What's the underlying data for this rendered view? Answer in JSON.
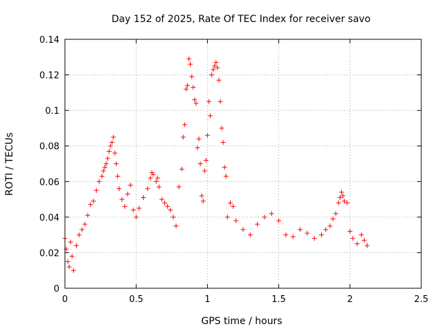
{
  "chart_data": {
    "type": "scatter",
    "title": "Day 152 of 2025, Rate Of TEC Index for receiver savo",
    "xlabel": "GPS time / hours",
    "ylabel": "ROTI / TECUs",
    "xlim": [
      0,
      2.5
    ],
    "ylim": [
      0,
      0.14
    ],
    "xticks": [
      "0",
      "0.5",
      "1",
      "1.5",
      "2",
      "2.5"
    ],
    "yticks": [
      "0",
      "0.02",
      "0.04",
      "0.06",
      "0.08",
      "0.1",
      "0.12",
      "0.14"
    ],
    "grid": true,
    "marker": "+",
    "marker_color": "#ff0000",
    "series": [
      {
        "points": [
          [
            0.0,
            0.028
          ],
          [
            0.01,
            0.022
          ],
          [
            0.02,
            0.015
          ],
          [
            0.03,
            0.012
          ],
          [
            0.04,
            0.026
          ],
          [
            0.05,
            0.018
          ],
          [
            0.06,
            0.01
          ],
          [
            0.08,
            0.024
          ],
          [
            0.1,
            0.03
          ],
          [
            0.12,
            0.033
          ],
          [
            0.14,
            0.036
          ],
          [
            0.16,
            0.041
          ],
          [
            0.18,
            0.047
          ],
          [
            0.2,
            0.049
          ],
          [
            0.22,
            0.055
          ],
          [
            0.24,
            0.06
          ],
          [
            0.26,
            0.063
          ],
          [
            0.27,
            0.066
          ],
          [
            0.28,
            0.068
          ],
          [
            0.29,
            0.07
          ],
          [
            0.3,
            0.073
          ],
          [
            0.31,
            0.077
          ],
          [
            0.32,
            0.08
          ],
          [
            0.33,
            0.082
          ],
          [
            0.34,
            0.085
          ],
          [
            0.35,
            0.076
          ],
          [
            0.36,
            0.07
          ],
          [
            0.37,
            0.063
          ],
          [
            0.38,
            0.056
          ],
          [
            0.4,
            0.05
          ],
          [
            0.42,
            0.046
          ],
          [
            0.44,
            0.053
          ],
          [
            0.46,
            0.058
          ],
          [
            0.48,
            0.044
          ],
          [
            0.5,
            0.04
          ],
          [
            0.52,
            0.045
          ],
          [
            0.55,
            0.051
          ],
          [
            0.58,
            0.056
          ],
          [
            0.6,
            0.062
          ],
          [
            0.61,
            0.065
          ],
          [
            0.62,
            0.064
          ],
          [
            0.64,
            0.06
          ],
          [
            0.65,
            0.062
          ],
          [
            0.66,
            0.057
          ],
          [
            0.68,
            0.05
          ],
          [
            0.7,
            0.048
          ],
          [
            0.72,
            0.046
          ],
          [
            0.74,
            0.044
          ],
          [
            0.76,
            0.04
          ],
          [
            0.78,
            0.035
          ],
          [
            0.8,
            0.057
          ],
          [
            0.82,
            0.067
          ],
          [
            0.83,
            0.085
          ],
          [
            0.84,
            0.092
          ],
          [
            0.85,
            0.112
          ],
          [
            0.86,
            0.114
          ],
          [
            0.87,
            0.129
          ],
          [
            0.88,
            0.126
          ],
          [
            0.89,
            0.119
          ],
          [
            0.9,
            0.113
          ],
          [
            0.91,
            0.106
          ],
          [
            0.92,
            0.104
          ],
          [
            0.93,
            0.079
          ],
          [
            0.94,
            0.084
          ],
          [
            0.95,
            0.07
          ],
          [
            0.96,
            0.052
          ],
          [
            0.97,
            0.049
          ],
          [
            0.98,
            0.066
          ],
          [
            0.99,
            0.072
          ],
          [
            1.0,
            0.086
          ],
          [
            1.01,
            0.105
          ],
          [
            1.02,
            0.097
          ],
          [
            1.03,
            0.12
          ],
          [
            1.04,
            0.123
          ],
          [
            1.05,
            0.125
          ],
          [
            1.06,
            0.127
          ],
          [
            1.07,
            0.124
          ],
          [
            1.08,
            0.117
          ],
          [
            1.09,
            0.105
          ],
          [
            1.1,
            0.09
          ],
          [
            1.11,
            0.082
          ],
          [
            1.12,
            0.068
          ],
          [
            1.13,
            0.063
          ],
          [
            1.14,
            0.04
          ],
          [
            1.16,
            0.048
          ],
          [
            1.18,
            0.046
          ],
          [
            1.2,
            0.038
          ],
          [
            1.25,
            0.033
          ],
          [
            1.3,
            0.03
          ],
          [
            1.35,
            0.036
          ],
          [
            1.4,
            0.04
          ],
          [
            1.45,
            0.042
          ],
          [
            1.5,
            0.038
          ],
          [
            1.55,
            0.03
          ],
          [
            1.6,
            0.029
          ],
          [
            1.65,
            0.033
          ],
          [
            1.7,
            0.031
          ],
          [
            1.75,
            0.028
          ],
          [
            1.8,
            0.03
          ],
          [
            1.83,
            0.033
          ],
          [
            1.86,
            0.035
          ],
          [
            1.88,
            0.039
          ],
          [
            1.9,
            0.042
          ],
          [
            1.92,
            0.048
          ],
          [
            1.93,
            0.051
          ],
          [
            1.94,
            0.054
          ],
          [
            1.95,
            0.052
          ],
          [
            1.96,
            0.049
          ],
          [
            1.98,
            0.048
          ],
          [
            2.0,
            0.032
          ],
          [
            2.02,
            0.028
          ],
          [
            2.05,
            0.025
          ],
          [
            2.08,
            0.03
          ],
          [
            2.1,
            0.027
          ],
          [
            2.12,
            0.024
          ]
        ]
      }
    ]
  }
}
